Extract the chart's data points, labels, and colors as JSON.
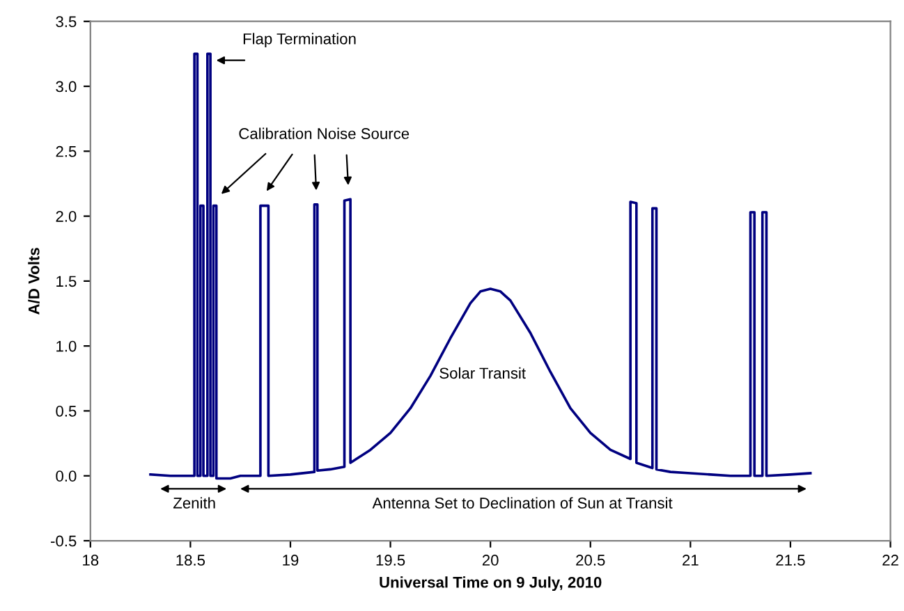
{
  "chart_data": {
    "type": "line",
    "xlabel": "Universal Time on 9 July, 2010",
    "ylabel": "A/D Volts",
    "xlim": [
      18,
      22
    ],
    "xticks": [
      18,
      18.5,
      19,
      19.5,
      20,
      20.5,
      21,
      21.5,
      22
    ],
    "ylim": [
      -0.5,
      3.5
    ],
    "yticks": [
      -0.5,
      {
        "value": 0,
        "label": "0.0"
      },
      0.5,
      {
        "value": 1,
        "label": "1.0"
      },
      1.5,
      {
        "value": 2,
        "label": "2.0"
      },
      2.5,
      {
        "value": 3,
        "label": "3.0"
      },
      3.5
    ],
    "grid": false,
    "legend": false,
    "marker": "none",
    "line_style": "solid",
    "series": [
      {
        "color": "#000080",
        "x": [
          18.3,
          18.4,
          18.52,
          18.52,
          18.535,
          18.535,
          18.55,
          18.55,
          18.565,
          18.565,
          18.585,
          18.585,
          18.6,
          18.6,
          18.615,
          18.615,
          18.63,
          18.63,
          18.7,
          18.75,
          18.85,
          18.85,
          18.89,
          18.89,
          19.0,
          19.12,
          19.12,
          19.135,
          19.135,
          19.2,
          19.27,
          19.27,
          19.3,
          19.3,
          19.4,
          19.5,
          19.6,
          19.7,
          19.8,
          19.9,
          19.95,
          20.0,
          20.05,
          20.1,
          20.2,
          20.3,
          20.4,
          20.5,
          20.6,
          20.7,
          20.7,
          20.73,
          20.73,
          20.81,
          20.81,
          20.83,
          20.83,
          20.9,
          21.0,
          21.1,
          21.2,
          21.3,
          21.3,
          21.32,
          21.32,
          21.36,
          21.36,
          21.38,
          21.38,
          21.5,
          21.6
        ],
        "values": [
          0.01,
          0.0,
          0.0,
          3.25,
          3.25,
          0.0,
          0.0,
          2.08,
          2.08,
          0.0,
          0.0,
          3.25,
          3.25,
          0.0,
          0.0,
          2.08,
          2.08,
          -0.02,
          -0.02,
          0.0,
          0.0,
          2.08,
          2.08,
          0.0,
          0.01,
          0.03,
          2.09,
          2.09,
          0.04,
          0.05,
          0.07,
          2.12,
          2.13,
          0.1,
          0.2,
          0.33,
          0.52,
          0.77,
          1.06,
          1.33,
          1.42,
          1.44,
          1.42,
          1.35,
          1.1,
          0.8,
          0.52,
          0.33,
          0.2,
          0.13,
          2.11,
          2.1,
          0.1,
          0.06,
          2.06,
          2.06,
          0.05,
          0.03,
          0.02,
          0.01,
          0.0,
          0.0,
          2.03,
          2.03,
          0.0,
          0.0,
          2.03,
          2.03,
          0.0,
          0.01,
          0.02
        ]
      }
    ],
    "annotations": [
      {
        "text": "Flap Termination",
        "x": 18.61,
        "y": 3.2
      },
      {
        "text": "Calibration Noise Source",
        "x": 18.64,
        "y": 2.12
      },
      "Solar Transit",
      "Zenith",
      "Antenna Set to Declination of Sun at Transit"
    ]
  }
}
